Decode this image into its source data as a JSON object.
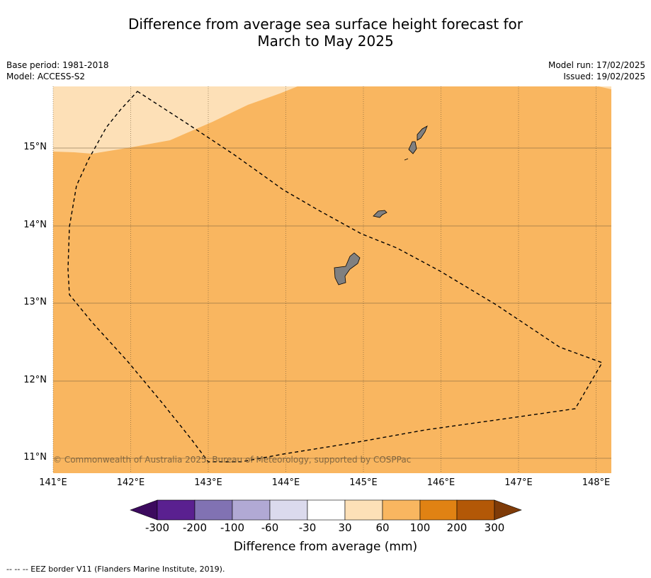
{
  "title_line1": "Difference from average sea surface height forecast for",
  "title_line2": "March to May 2025",
  "base_period": "Base period: 1981-2018",
  "model": "Model: ACCESS-S2",
  "model_run": "Model run: 17/02/2025",
  "issued": "Issued: 19/02/2025",
  "lat_labels": [
    "15°N",
    "14°N",
    "13°N",
    "12°N",
    "11°N"
  ],
  "lon_labels": [
    "141°E",
    "142°E",
    "143°E",
    "144°E",
    "145°E",
    "146°E",
    "147°E",
    "148°E"
  ],
  "copyright": "© Commonwealth of Australia 2025, Bureau of Meteorology, supported by COSPPac",
  "colorbar": {
    "ticks": [
      "-300",
      "-200",
      "-100",
      "-60",
      "-30",
      "30",
      "60",
      "100",
      "200",
      "300"
    ],
    "colors": [
      "#3c0a5e",
      "#5a2090",
      "#8172b3",
      "#b1a9d4",
      "#dbdaed",
      "#ffffff",
      "#fde0b7",
      "#f9b660",
      "#e08213",
      "#b35807",
      "#7f3b08"
    ],
    "label": "Difference from average (mm)"
  },
  "map_colors": {
    "main": "#f9b660",
    "light": "#fde0b7",
    "land": "#808080"
  },
  "footnote": "-- -- -- EEZ border V11 (Flanders Marine Institute, 2019)."
}
